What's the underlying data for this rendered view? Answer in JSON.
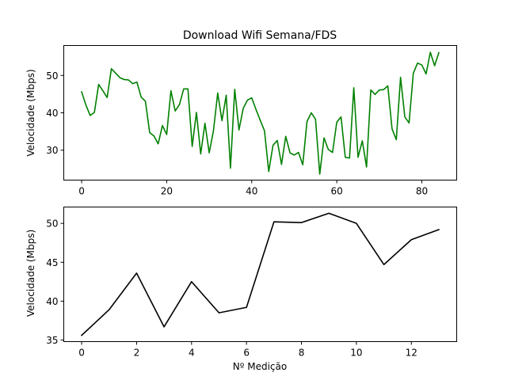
{
  "chart_data": [
    {
      "type": "line",
      "title": "Download Wifi Semana/FDS",
      "xlabel": "",
      "ylabel": "Velocidade (Mbps)",
      "xlim": [
        -4.2,
        88.2
      ],
      "ylim": [
        22,
        58
      ],
      "xticks": [
        0,
        20,
        40,
        60,
        80
      ],
      "yticks": [
        30,
        40,
        50
      ],
      "color": "#008000",
      "series": [
        {
          "x": [
            0,
            1,
            2,
            3,
            4,
            5,
            6,
            7,
            8,
            9,
            10,
            11,
            12,
            13,
            14,
            15,
            16,
            17,
            18,
            19,
            20,
            21,
            22,
            23,
            24,
            25,
            26,
            27,
            28,
            29,
            30,
            31,
            32,
            33,
            34,
            35,
            36,
            37,
            38,
            39,
            40,
            41,
            42,
            43,
            44,
            45,
            46,
            47,
            48,
            49,
            50,
            51,
            52,
            53,
            54,
            55,
            56,
            57,
            58,
            59,
            60,
            61,
            62,
            63,
            64,
            65,
            66,
            67,
            68,
            69,
            70,
            71,
            72,
            73,
            74,
            75,
            76,
            77,
            78,
            79,
            80,
            81,
            82,
            83,
            84
          ],
          "values": [
            45.6,
            42.1,
            39.3,
            40.1,
            47.6,
            45.9,
            44.1,
            51.8,
            50.6,
            49.4,
            48.9,
            48.8,
            47.8,
            48.2,
            44.2,
            43.1,
            34.7,
            33.8,
            31.7,
            36.6,
            34.2,
            45.9,
            40.5,
            42.2,
            46.4,
            46.4,
            31.0,
            40.1,
            29.0,
            37.2,
            29.3,
            35.2,
            45.3,
            37.9,
            44.7,
            25.2,
            46.3,
            35.4,
            41.2,
            43.4,
            44.0,
            40.9,
            38.0,
            35.2,
            24.3,
            31.3,
            32.6,
            26.2,
            33.7,
            29.3,
            28.7,
            29.4,
            26.1,
            37.7,
            40.0,
            38.3,
            23.6,
            33.3,
            30.2,
            29.4,
            37.5,
            38.9,
            28.1,
            27.9,
            46.7,
            28.1,
            32.5,
            25.5,
            46.1,
            44.9,
            46.1,
            46.2,
            47.2,
            35.7,
            32.8,
            49.5,
            38.9,
            37.3,
            50.6,
            53.3,
            52.8,
            50.4,
            56.2,
            52.6,
            56.1
          ]
        }
      ]
    },
    {
      "type": "line",
      "title": "",
      "xlabel": "Nº Medição",
      "ylabel": "Velocidade (Mbps)",
      "xlim": [
        -0.65,
        13.65
      ],
      "ylim": [
        34.8,
        52.1
      ],
      "xticks": [
        0,
        2,
        4,
        6,
        8,
        10,
        12
      ],
      "yticks": [
        35,
        40,
        45,
        50
      ],
      "color": "#000000",
      "series": [
        {
          "x": [
            0,
            1,
            2,
            3,
            4,
            5,
            6,
            7,
            8,
            9,
            10,
            11,
            12,
            13
          ],
          "values": [
            35.6,
            38.9,
            43.6,
            36.7,
            42.5,
            38.5,
            39.2,
            50.2,
            50.1,
            51.3,
            50.0,
            44.7,
            47.9,
            49.2
          ]
        }
      ]
    }
  ]
}
